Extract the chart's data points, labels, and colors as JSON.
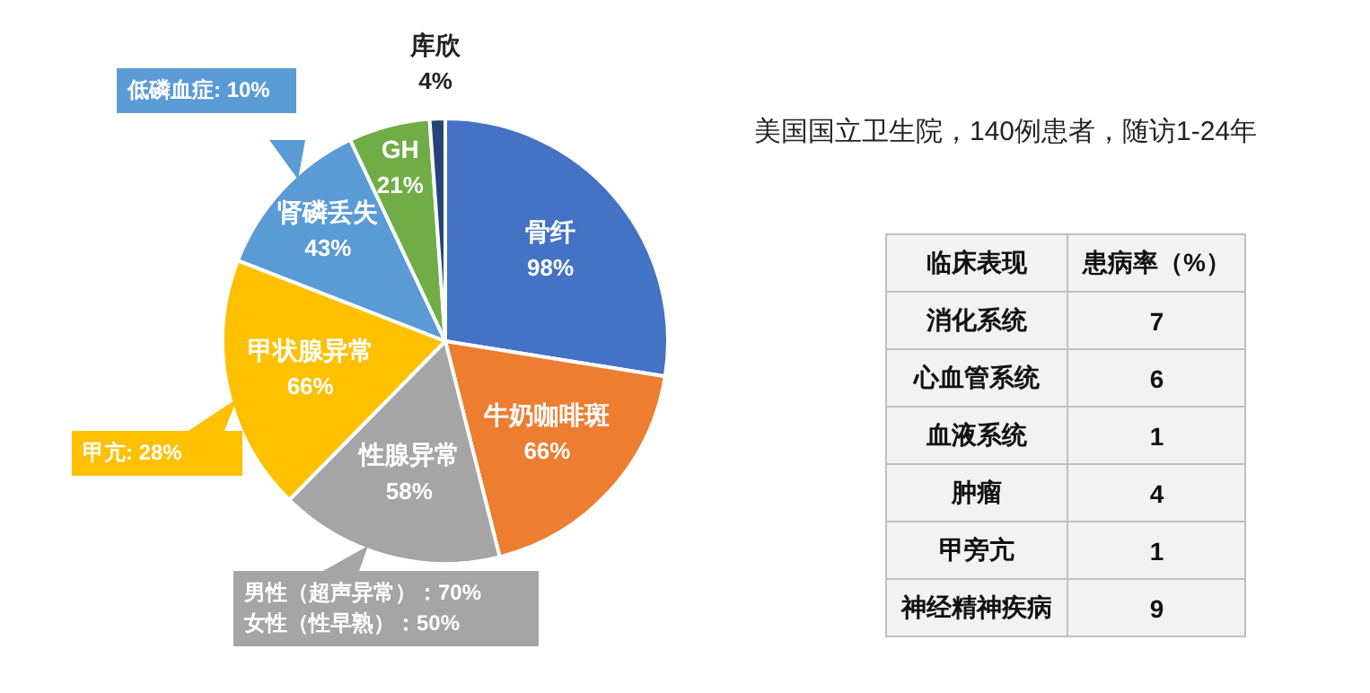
{
  "chart_data": [
    {
      "type": "pie",
      "title": "美国国立卫生院，140例患者，随访1-24年",
      "categories": [
        "骨纤",
        "牛奶咖啡斑",
        "性腺异常",
        "甲状腺异常",
        "肾磷丢失",
        "GH",
        "库欣"
      ],
      "values": [
        98,
        66,
        58,
        66,
        43,
        21,
        4
      ],
      "value_labels": [
        "98%",
        "66%",
        "58%",
        "66%",
        "43%",
        "21%",
        "4%"
      ],
      "colors": [
        "#4472c4",
        "#ed7d31",
        "#a5a5a5",
        "#ffc000",
        "#5b9bd5",
        "#70ad47",
        "#264478"
      ],
      "annotations": [
        {
          "text": "低磷血症: 10%",
          "x": "肾磷丢失"
        },
        {
          "text": "甲亢: 28%",
          "x": "甲状腺异常"
        },
        {
          "text": "男性（超声异常）：70%",
          "x": "性腺异常"
        },
        {
          "text": "女性（性早熟）：50%",
          "x": "性腺异常"
        }
      ]
    },
    {
      "type": "other",
      "annotations": [
        "临床表现",
        "患病率（%）"
      ],
      "categories": [
        "消化系统",
        "心血管系统",
        "血液系统",
        "肿瘤",
        "甲旁亢",
        "神经精神疾病"
      ],
      "values": [
        7,
        6,
        1,
        4,
        1,
        9
      ],
      "data_labels": true
    }
  ]
}
